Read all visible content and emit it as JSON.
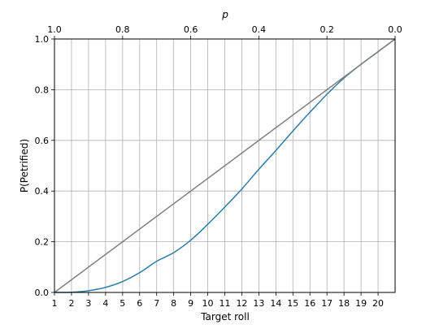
{
  "chart_data": {
    "type": "line",
    "xlabel": "Target roll",
    "ylabel": "P(Petrified)",
    "top_xlabel": "p",
    "xlim": [
      1,
      21
    ],
    "ylim": [
      0.0,
      1.0
    ],
    "x_ticks": [
      1,
      2,
      3,
      4,
      5,
      6,
      7,
      8,
      9,
      10,
      11,
      12,
      13,
      14,
      15,
      16,
      17,
      18,
      19,
      20
    ],
    "y_ticks": [
      0.0,
      0.2,
      0.4,
      0.6,
      0.8,
      1.0
    ],
    "y_tick_labels": [
      "0.0",
      "0.2",
      "0.4",
      "0.6",
      "0.8",
      "1.0"
    ],
    "top_x_ticks": [
      1.0,
      0.8,
      0.6,
      0.4,
      0.2,
      0.0
    ],
    "top_x_tick_labels": [
      "1.0",
      "0.8",
      "0.6",
      "0.4",
      "0.2",
      "0.0"
    ],
    "grid": true,
    "series": [
      {
        "color": "#2e7ba6",
        "x": [
          1,
          2,
          3,
          4,
          5,
          6,
          7,
          8,
          9,
          10,
          11,
          12,
          13,
          14,
          15,
          16,
          17,
          18,
          19,
          20,
          21
        ],
        "y": [
          0.0,
          0.001,
          0.007,
          0.02,
          0.043,
          0.078,
          0.123,
          0.157,
          0.206,
          0.269,
          0.337,
          0.408,
          0.486,
          0.56,
          0.637,
          0.711,
          0.782,
          0.846,
          0.9,
          0.95,
          1.0
        ]
      },
      {
        "color": "#808080",
        "x": [
          1,
          21
        ],
        "y": [
          0.0,
          1.0
        ]
      }
    ]
  }
}
